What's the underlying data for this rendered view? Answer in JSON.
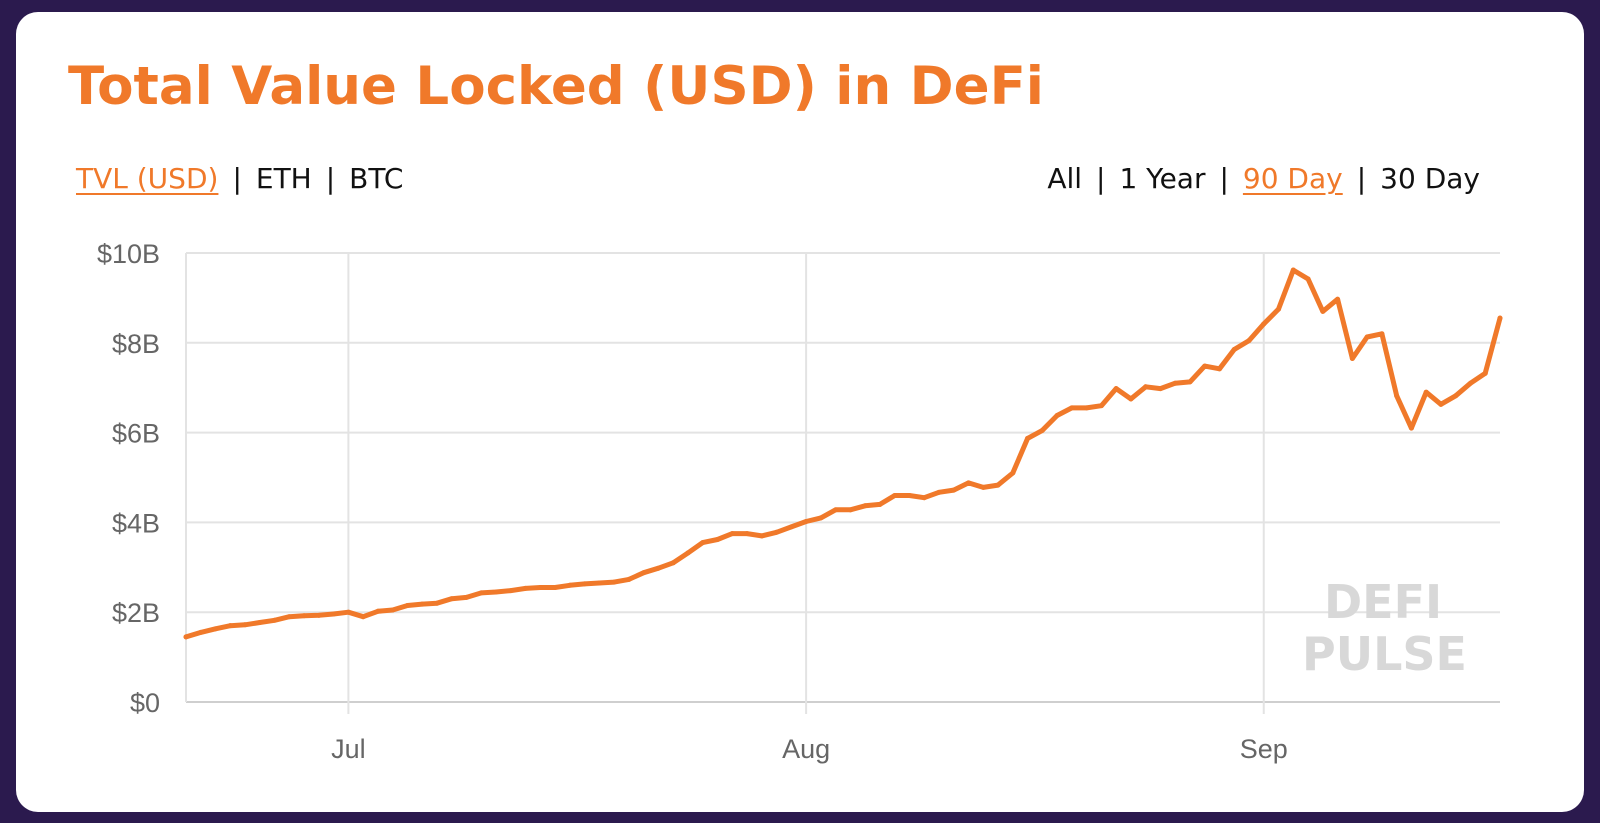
{
  "title": "Total Value Locked (USD) in DeFi",
  "metric_toggle": {
    "options": [
      "TVL (USD)",
      "ETH",
      "BTC"
    ],
    "active": "TVL (USD)"
  },
  "range_toggle": {
    "options": [
      "All",
      "1 Year",
      "90 Day",
      "30 Day"
    ],
    "active": "90 Day"
  },
  "watermark": {
    "line1": "DEFI",
    "line2": "PULSE"
  },
  "colors": {
    "accent": "#f0792a",
    "line": "#f0792a",
    "grid": "#e3e3e3",
    "background_frame": "#2b1a4e"
  },
  "chart_data": {
    "type": "line",
    "title": "Total Value Locked (USD) in DeFi",
    "x_ticks": [
      {
        "day": 11,
        "label": "Jul"
      },
      {
        "day": 42,
        "label": "Aug"
      },
      {
        "day": 73,
        "label": "Sep"
      }
    ],
    "y_ticks": [
      "$0",
      "$2B",
      "$4B",
      "$6B",
      "$8B",
      "$10B"
    ],
    "ylim": [
      0,
      10
    ],
    "y_unit": "billion USD",
    "grid": true,
    "series": [
      {
        "values": [
          1.45,
          1.55,
          1.63,
          1.7,
          1.72,
          1.77,
          1.82,
          1.9,
          1.92,
          1.93,
          1.96,
          2.0,
          1.9,
          2.02,
          2.05,
          2.15,
          2.18,
          2.2,
          2.3,
          2.33,
          2.43,
          2.45,
          2.48,
          2.53,
          2.55,
          2.55,
          2.6,
          2.63,
          2.65,
          2.67,
          2.73,
          2.88,
          2.98,
          3.1,
          3.32,
          3.55,
          3.62,
          3.75,
          3.75,
          3.7,
          3.78,
          3.9,
          4.02,
          4.1,
          4.28,
          4.28,
          4.37,
          4.4,
          4.6,
          4.6,
          4.55,
          4.67,
          4.72,
          4.88,
          4.78,
          4.83,
          5.1,
          5.87,
          6.05,
          6.38,
          6.55,
          6.55,
          6.6,
          6.98,
          6.75,
          7.02,
          6.98,
          7.1,
          7.13,
          7.48,
          7.42,
          7.85,
          8.05,
          8.42,
          8.75,
          9.62,
          9.42,
          8.7,
          8.97,
          7.65,
          8.13,
          8.2,
          6.82,
          6.1,
          6.9,
          6.63,
          6.82,
          7.1,
          7.32,
          8.55
        ]
      }
    ]
  }
}
